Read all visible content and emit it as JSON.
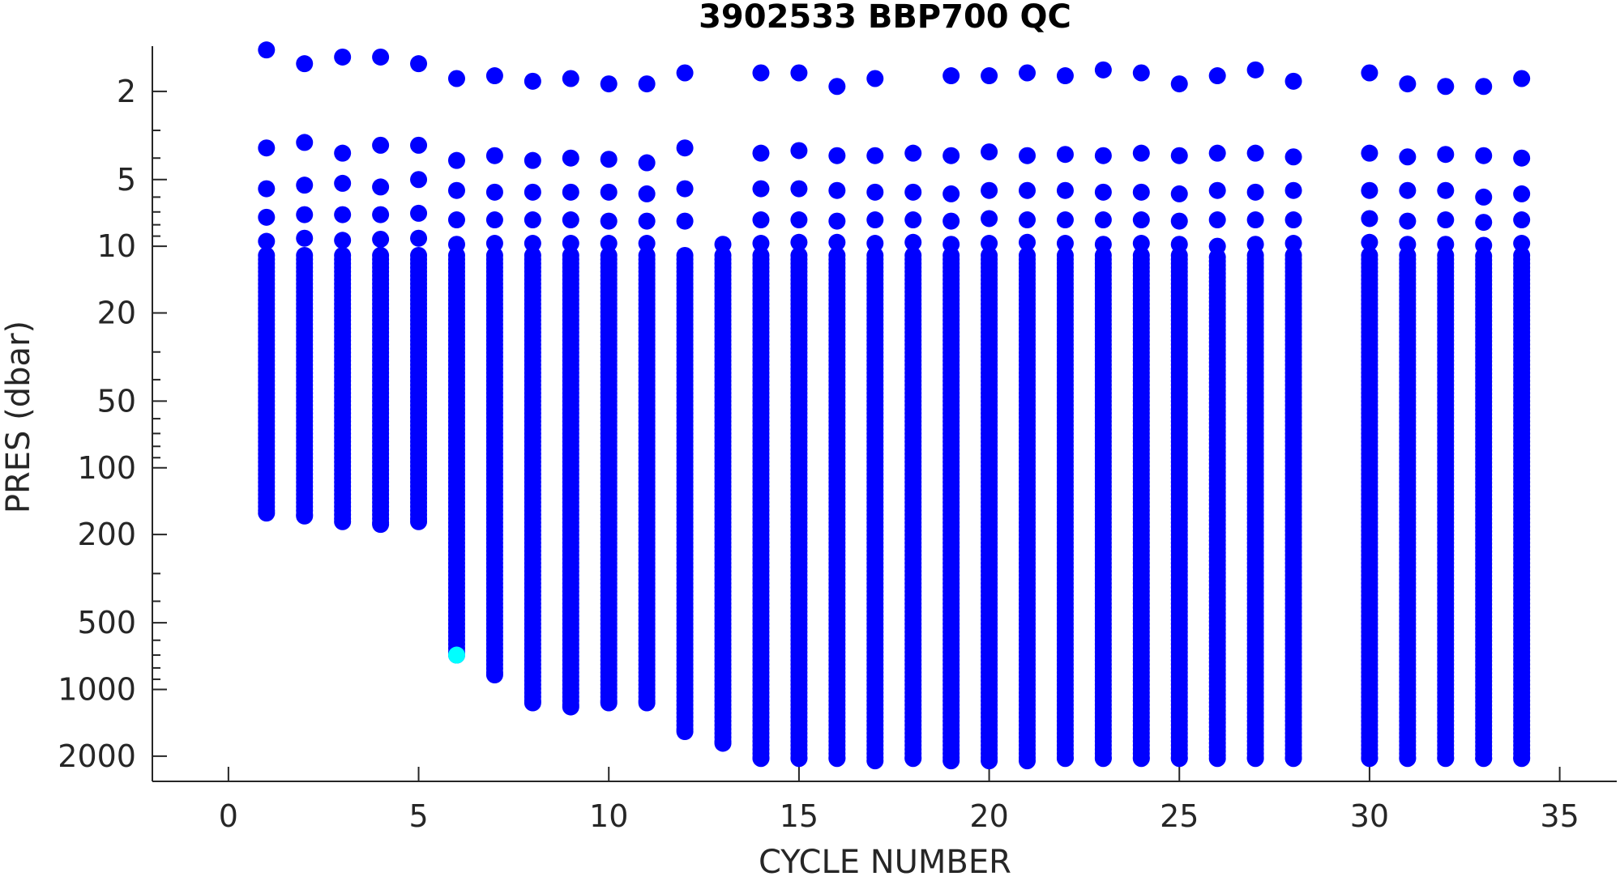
{
  "chart_data": {
    "type": "scatter",
    "title": "3902533 BBP700 QC",
    "xlabel": "CYCLE NUMBER",
    "ylabel": "PRES (dbar)",
    "xlim": [
      -2,
      36.5
    ],
    "ylim": [
      2600,
      1.25
    ],
    "yscale": "log",
    "y_reversed": true,
    "grid": false,
    "xticks": [
      0,
      5,
      10,
      15,
      20,
      25,
      30,
      35
    ],
    "xtick_labels": [
      "0",
      "5",
      "10",
      "15",
      "20",
      "25",
      "30",
      "35"
    ],
    "yticks": [
      2,
      5,
      10,
      20,
      50,
      100,
      200,
      500,
      1000,
      2000
    ],
    "ytick_labels": [
      "2",
      "5",
      "10",
      "20",
      "50",
      "100",
      "200",
      "500",
      "1000",
      "2000"
    ],
    "colors": {
      "good": "#0000ff",
      "flagged": "#00ffff",
      "axis": "#262626"
    },
    "series": [
      {
        "color": "good",
        "profiles": [
          {
            "cycle": 1,
            "top": 1.3,
            "second": 3.6,
            "third": 5.5,
            "fourth": 7.4,
            "fifth": 9.5,
            "bottom": 160
          },
          {
            "cycle": 2,
            "top": 1.5,
            "second": 3.4,
            "third": 5.3,
            "fourth": 7.2,
            "fifth": 9.2,
            "bottom": 165
          },
          {
            "cycle": 3,
            "top": 1.4,
            "second": 3.8,
            "third": 5.2,
            "fourth": 7.2,
            "fifth": 9.4,
            "bottom": 175
          },
          {
            "cycle": 4,
            "top": 1.4,
            "second": 3.5,
            "third": 5.4,
            "fourth": 7.2,
            "fifth": 9.3,
            "bottom": 180
          },
          {
            "cycle": 5,
            "top": 1.5,
            "second": 3.5,
            "third": 5.0,
            "fourth": 7.1,
            "fifth": 9.2,
            "bottom": 175
          },
          {
            "cycle": 6,
            "top": 1.75,
            "second": 4.1,
            "third": 5.6,
            "fourth": 7.6,
            "fifth": 9.8,
            "bottom": 700,
            "flagged_bottom": 700
          },
          {
            "cycle": 7,
            "top": 1.7,
            "second": 3.9,
            "third": 5.7,
            "fourth": 7.6,
            "fifth": 9.7,
            "bottom": 860
          },
          {
            "cycle": 8,
            "top": 1.8,
            "second": 4.1,
            "third": 5.7,
            "fourth": 7.6,
            "fifth": 9.7,
            "bottom": 1150
          },
          {
            "cycle": 9,
            "top": 1.75,
            "second": 4.0,
            "third": 5.7,
            "fourth": 7.6,
            "fifth": 9.7,
            "bottom": 1200
          },
          {
            "cycle": 10,
            "top": 1.85,
            "second": 4.05,
            "third": 5.7,
            "fourth": 7.7,
            "fifth": 9.7,
            "bottom": 1150
          },
          {
            "cycle": 11,
            "top": 1.85,
            "second": 4.2,
            "third": 5.8,
            "fourth": 7.7,
            "fifth": 9.7,
            "bottom": 1150
          },
          {
            "cycle": 12,
            "top": 1.65,
            "second": 3.6,
            "third": 5.5,
            "fourth": 7.7,
            "fifth": null,
            "bottom": 1550
          },
          {
            "cycle": 13,
            "top": null,
            "second": null,
            "third": null,
            "fourth": null,
            "fifth": 9.8,
            "bottom": 1750
          },
          {
            "cycle": 14,
            "top": 1.65,
            "second": 3.8,
            "third": 5.5,
            "fourth": 7.6,
            "fifth": 9.7,
            "bottom": 2050
          },
          {
            "cycle": 15,
            "top": 1.65,
            "second": 3.7,
            "third": 5.5,
            "fourth": 7.6,
            "fifth": 9.6,
            "bottom": 2050
          },
          {
            "cycle": 16,
            "top": 1.9,
            "second": 3.9,
            "third": 5.6,
            "fourth": 7.7,
            "fifth": 9.6,
            "bottom": 2050
          },
          {
            "cycle": 17,
            "top": 1.75,
            "second": 3.9,
            "third": 5.7,
            "fourth": 7.6,
            "fifth": 9.7,
            "bottom": 2100
          },
          {
            "cycle": 18,
            "top": null,
            "second": 3.8,
            "third": 5.7,
            "fourth": 7.6,
            "fifth": 9.6,
            "bottom": 2050
          },
          {
            "cycle": 19,
            "top": 1.7,
            "second": 3.9,
            "third": 5.8,
            "fourth": 7.7,
            "fifth": 9.8,
            "bottom": 2100
          },
          {
            "cycle": 20,
            "top": 1.7,
            "second": 3.75,
            "third": 5.6,
            "fourth": 7.5,
            "fifth": 9.7,
            "bottom": 2100
          },
          {
            "cycle": 21,
            "top": 1.65,
            "second": 3.9,
            "third": 5.6,
            "fourth": 7.6,
            "fifth": 9.6,
            "bottom": 2100
          },
          {
            "cycle": 22,
            "top": 1.7,
            "second": 3.85,
            "third": 5.6,
            "fourth": 7.6,
            "fifth": 9.7,
            "bottom": 2050
          },
          {
            "cycle": 23,
            "top": 1.6,
            "second": 3.9,
            "third": 5.7,
            "fourth": 7.6,
            "fifth": 9.8,
            "bottom": 2050
          },
          {
            "cycle": 24,
            "top": 1.65,
            "second": 3.8,
            "third": 5.7,
            "fourth": 7.6,
            "fifth": 9.7,
            "bottom": 2050
          },
          {
            "cycle": 25,
            "top": 1.85,
            "second": 3.9,
            "third": 5.8,
            "fourth": 7.7,
            "fifth": 9.8,
            "bottom": 2050
          },
          {
            "cycle": 26,
            "top": 1.7,
            "second": 3.8,
            "third": 5.6,
            "fourth": 7.6,
            "fifth": 10.0,
            "bottom": 2050
          },
          {
            "cycle": 27,
            "top": 1.6,
            "second": 3.8,
            "third": 5.7,
            "fourth": 7.6,
            "fifth": 9.8,
            "bottom": 2050
          },
          {
            "cycle": 28,
            "top": 1.8,
            "second": 3.95,
            "third": 5.6,
            "fourth": 7.6,
            "fifth": 9.7,
            "bottom": 2050
          },
          {
            "cycle": 30,
            "top": 1.65,
            "second": 3.8,
            "third": 5.6,
            "fourth": 7.5,
            "fifth": 9.6,
            "bottom": 2050
          },
          {
            "cycle": 31,
            "top": 1.85,
            "second": 3.95,
            "third": 5.6,
            "fourth": 7.7,
            "fifth": 9.8,
            "bottom": 2050
          },
          {
            "cycle": 32,
            "top": 1.9,
            "second": 3.85,
            "third": 5.6,
            "fourth": 7.6,
            "fifth": 9.8,
            "bottom": 2050
          },
          {
            "cycle": 33,
            "top": 1.9,
            "second": 3.9,
            "third": 6.0,
            "fourth": 7.8,
            "fifth": 9.9,
            "bottom": 2050
          },
          {
            "cycle": 34,
            "top": 1.75,
            "second": 4.0,
            "third": 5.8,
            "fourth": 7.6,
            "fifth": 9.7,
            "bottom": 2050
          }
        ]
      }
    ]
  }
}
